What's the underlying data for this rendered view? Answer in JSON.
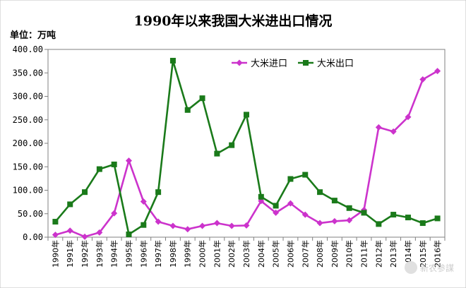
{
  "chart_data": {
    "type": "line",
    "title": "1990年以来我国大米进出口情况",
    "unit_label": "单位：万吨",
    "categories": [
      "1990年",
      "1991年",
      "1992年",
      "1993年",
      "1994年",
      "1995年",
      "1996年",
      "1997年",
      "1998年",
      "1999年",
      "2000年",
      "2001年",
      "2002年",
      "2003年",
      "2004年",
      "2005年",
      "2006年",
      "2007年",
      "2008年",
      "2009年",
      "2010年",
      "2011年",
      "2012年",
      "2013年",
      "2014年",
      "2015年",
      "2016年"
    ],
    "y_tick_labels": [
      "0.00",
      "50.00",
      "100.00",
      "150.00",
      "200.00",
      "250.00",
      "300.00",
      "350.00",
      "400.00"
    ],
    "ylim": [
      0,
      400
    ],
    "grid": false,
    "legend_position": "top-right",
    "series": [
      {
        "name": "大米进口",
        "color": "#cc33cc",
        "marker": "diamond",
        "values": [
          5,
          14,
          1,
          10,
          51,
          163,
          76,
          33,
          24,
          17,
          24,
          30,
          24,
          25,
          77,
          52,
          72,
          48,
          30,
          34,
          36,
          58,
          234,
          225,
          256,
          336,
          354
        ]
      },
      {
        "name": "大米出口",
        "color": "#1a7a1a",
        "marker": "square",
        "values": [
          33,
          70,
          96,
          145,
          155,
          6,
          26,
          96,
          376,
          271,
          296,
          178,
          196,
          261,
          86,
          67,
          124,
          133,
          96,
          78,
          62,
          52,
          28,
          48,
          42,
          30,
          40
        ]
      }
    ]
  },
  "watermark": {
    "text": "新农参謀",
    "icon": "wechat-icon"
  }
}
